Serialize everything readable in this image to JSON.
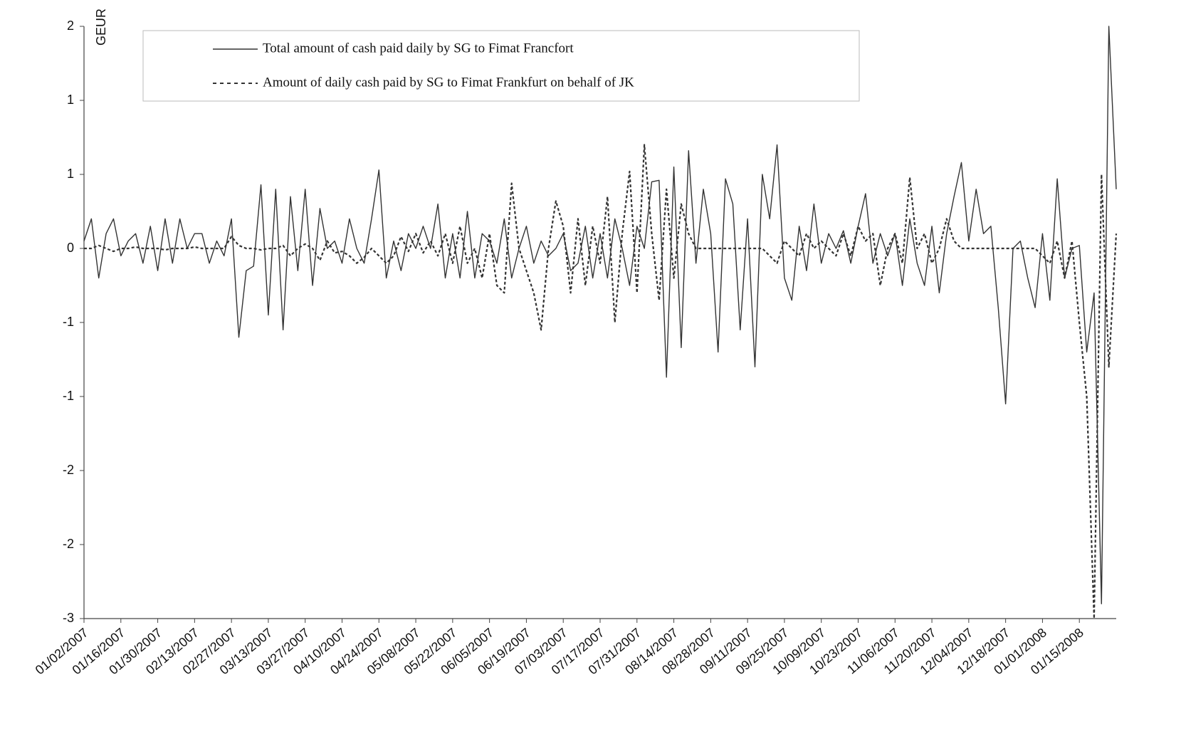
{
  "chart_data": {
    "type": "line",
    "y_label": "GEUR",
    "categories": [
      "01/02/2007",
      null,
      null,
      null,
      null,
      "01/16/2007",
      null,
      null,
      null,
      null,
      "01/30/2007",
      null,
      null,
      null,
      null,
      "02/13/2007",
      null,
      null,
      null,
      null,
      "02/27/2007",
      null,
      null,
      null,
      null,
      "03/13/2007",
      null,
      null,
      null,
      null,
      "03/27/2007",
      null,
      null,
      null,
      null,
      "04/10/2007",
      null,
      null,
      null,
      null,
      "04/24/2007",
      null,
      null,
      null,
      null,
      "05/08/2007",
      null,
      null,
      null,
      null,
      "05/22/2007",
      null,
      null,
      null,
      null,
      "06/05/2007",
      null,
      null,
      null,
      null,
      "06/19/2007",
      null,
      null,
      null,
      null,
      "07/03/2007",
      null,
      null,
      null,
      null,
      "07/17/2007",
      null,
      null,
      null,
      null,
      "07/31/2007",
      null,
      null,
      null,
      null,
      "08/14/2007",
      null,
      null,
      null,
      null,
      "08/28/2007",
      null,
      null,
      null,
      null,
      "09/11/2007",
      null,
      null,
      null,
      null,
      "09/25/2007",
      null,
      null,
      null,
      null,
      "10/09/2007",
      null,
      null,
      null,
      null,
      "10/23/2007",
      null,
      null,
      null,
      null,
      "11/06/2007",
      null,
      null,
      null,
      null,
      "11/20/2007",
      null,
      null,
      null,
      null,
      "12/04/2007",
      null,
      null,
      null,
      null,
      "12/18/2007",
      null,
      null,
      null,
      null,
      "01/01/2008",
      null,
      null,
      null,
      null,
      "01/15/2008",
      null,
      null,
      null,
      null,
      null
    ],
    "series": [
      {
        "name": "Total amount of cash paid daily by SG to Fimat Francfort",
        "color": "#333333",
        "style": "solid",
        "values": [
          0.05,
          0.2,
          -0.2,
          0.1,
          0.2,
          -0.05,
          0.05,
          0.1,
          -0.1,
          0.15,
          -0.15,
          0.2,
          -0.1,
          0.2,
          0.0,
          0.1,
          0.1,
          -0.1,
          0.05,
          -0.05,
          0.2,
          -0.6,
          -0.15,
          -0.12,
          0.43,
          -0.45,
          0.4,
          -0.55,
          0.35,
          -0.15,
          0.4,
          -0.25,
          0.27,
          0.0,
          0.05,
          -0.1,
          0.2,
          0.0,
          -0.1,
          0.2,
          0.53,
          -0.2,
          0.05,
          -0.15,
          0.1,
          0.0,
          0.15,
          0.0,
          0.3,
          -0.2,
          0.1,
          -0.2,
          0.25,
          -0.2,
          0.1,
          0.05,
          -0.1,
          0.2,
          -0.2,
          0.0,
          0.15,
          -0.1,
          0.05,
          -0.05,
          0.0,
          0.1,
          -0.15,
          -0.1,
          0.15,
          -0.2,
          0.1,
          -0.2,
          0.2,
          0.0,
          -0.25,
          0.15,
          0.0,
          0.45,
          0.46,
          -0.87,
          0.55,
          -0.67,
          0.66,
          -0.1,
          0.4,
          0.1,
          -0.7,
          0.47,
          0.3,
          -0.55,
          0.2,
          -0.8,
          0.5,
          0.2,
          0.7,
          -0.2,
          -0.35,
          0.15,
          -0.15,
          0.3,
          -0.1,
          0.1,
          0.0,
          0.12,
          -0.1,
          0.15,
          0.37,
          -0.1,
          0.1,
          -0.05,
          0.1,
          -0.25,
          0.2,
          -0.1,
          -0.25,
          0.15,
          -0.3,
          0.1,
          0.35,
          0.58,
          0.05,
          0.4,
          0.1,
          0.15,
          -0.4,
          -1.05,
          0.0,
          0.05,
          -0.2,
          -0.4,
          0.1,
          -0.35,
          0.47,
          -0.2,
          0.0,
          0.02,
          -0.7,
          -0.3,
          -2.4,
          1.5,
          0.4
        ]
      },
      {
        "name": "Amount of daily cash paid by SG to Fimat Frankfurt on behalf of JK",
        "color": "#333333",
        "style": "dashed",
        "values": [
          0,
          0,
          0.02,
          0,
          -0.02,
          0,
          0,
          0.01,
          0,
          0,
          0,
          -0.01,
          0,
          0,
          0,
          0.01,
          0,
          0,
          0,
          0,
          0.08,
          0.02,
          0,
          0,
          -0.01,
          0,
          0,
          0.02,
          -0.05,
          0,
          0.03,
          0,
          -0.08,
          0.05,
          -0.03,
          -0.02,
          -0.05,
          -0.1,
          -0.06,
          0.0,
          -0.05,
          -0.1,
          -0.05,
          0.08,
          -0.02,
          0.1,
          -0.03,
          0.05,
          -0.05,
          0.1,
          -0.1,
          0.15,
          -0.1,
          0.0,
          -0.2,
          0.1,
          -0.25,
          -0.3,
          0.44,
          0.0,
          -0.15,
          -0.3,
          -0.55,
          0.0,
          0.32,
          0.15,
          -0.3,
          0.2,
          -0.25,
          0.15,
          -0.1,
          0.35,
          -0.5,
          0.1,
          0.52,
          -0.3,
          0.7,
          0.1,
          -0.35,
          0.4,
          -0.2,
          0.3,
          0.1,
          0.0,
          0.0,
          0.0,
          0.0,
          0.0,
          0.0,
          0.0,
          0.0,
          0.0,
          0.0,
          -0.05,
          -0.1,
          0.05,
          0.0,
          -0.05,
          0.1,
          0.0,
          0.05,
          0.0,
          -0.05,
          0.1,
          -0.05,
          0.15,
          0.05,
          0.1,
          -0.25,
          0.0,
          0.1,
          -0.1,
          0.48,
          0.0,
          0.1,
          -0.1,
          0.0,
          0.2,
          0.05,
          0.0,
          0.0,
          0.0,
          0.0,
          0.0,
          0.0,
          0.0,
          0.0,
          0.0,
          0.0,
          0.0,
          -0.05,
          -0.1,
          0.05,
          -0.2,
          0.05,
          -0.5,
          -1.0,
          -2.5,
          0.5,
          -0.8,
          0.1
        ]
      }
    ],
    "ylim": [
      -2.5,
      1.5
    ],
    "yticks": [
      {
        "value": 1.5,
        "label": "2"
      },
      1,
      {
        "value": 0.5,
        "label": "1"
      },
      0,
      {
        "value": -0.5,
        "label": "-1"
      },
      -1,
      {
        "value": -1.5,
        "label": "-2"
      },
      -2,
      {
        "value": -2.5,
        "label": "-3"
      }
    ],
    "grid": false
  }
}
